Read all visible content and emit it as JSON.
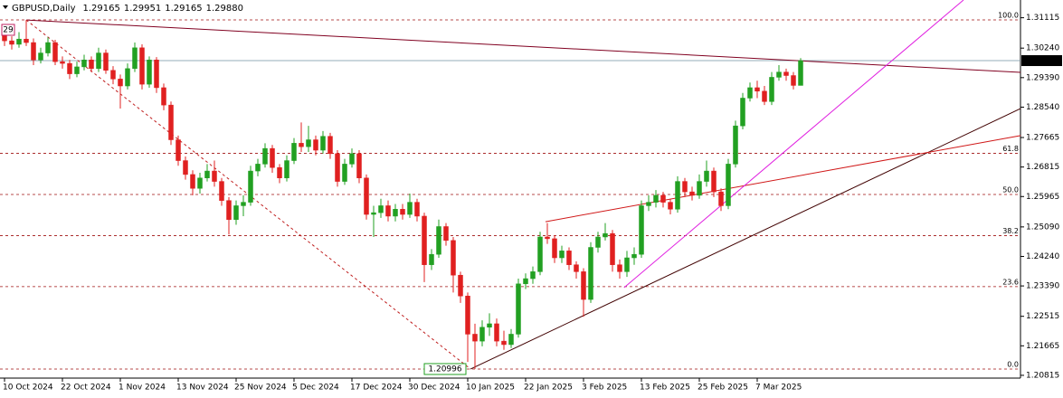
{
  "chart_data": {
    "type": "candlestick",
    "symbol": "GBPUSD,Daily",
    "corner_label": "29",
    "last_price_label": "1.29880",
    "categories": [
      "10 Oct 2024",
      null,
      null,
      null,
      null,
      null,
      null,
      null,
      "22 Oct 2024",
      null,
      null,
      null,
      null,
      null,
      null,
      null,
      "1 Nov 2024",
      null,
      null,
      null,
      null,
      null,
      null,
      null,
      "13 Nov 2024",
      null,
      null,
      null,
      null,
      null,
      null,
      null,
      "25 Nov 2024",
      null,
      null,
      null,
      null,
      null,
      null,
      null,
      "5 Dec 2024",
      null,
      null,
      null,
      null,
      null,
      null,
      null,
      "17 Dec 2024",
      null,
      null,
      null,
      null,
      null,
      null,
      null,
      "30 Dec 2024",
      null,
      null,
      null,
      null,
      null,
      null,
      null,
      "10 Jan 2025",
      null,
      null,
      null,
      null,
      null,
      null,
      null,
      "22 Jan 2025",
      null,
      null,
      null,
      null,
      null,
      null,
      null,
      "3 Feb 2025",
      null,
      null,
      null,
      null,
      null,
      null,
      null,
      "13 Feb 2025",
      null,
      null,
      null,
      null,
      null,
      null,
      null,
      "25 Feb 2025",
      null,
      null,
      null,
      null,
      null,
      null,
      null,
      "7 Mar 2025",
      null,
      null,
      null,
      null,
      null,
      null
    ],
    "open": [
      1.306,
      1.3045,
      1.3035,
      1.305,
      1.304,
      1.299,
      1.301,
      1.304,
      1.2985,
      1.298,
      1.295,
      1.297,
      1.299,
      1.2965,
      1.301,
      1.296,
      1.2935,
      1.2915,
      1.2965,
      1.3025,
      1.292,
      1.299,
      1.291,
      1.286,
      1.276,
      1.27,
      1.266,
      1.262,
      1.265,
      1.267,
      1.264,
      1.2585,
      1.253,
      1.257,
      1.258,
      1.267,
      1.269,
      1.2735,
      1.268,
      1.265,
      1.27,
      1.275,
      1.274,
      1.276,
      1.273,
      1.277,
      1.272,
      1.264,
      1.269,
      1.272,
      1.265,
      1.2545,
      1.255,
      1.257,
      1.254,
      1.256,
      1.2545,
      1.258,
      1.254,
      1.24,
      1.243,
      1.251,
      1.247,
      1.237,
      1.231,
      1.22,
      1.218,
      1.222,
      1.223,
      1.218,
      1.217,
      1.22,
      1.2345,
      1.236,
      1.238,
      1.248,
      1.2475,
      1.242,
      1.244,
      1.24,
      1.238,
      1.23,
      1.245,
      1.248,
      1.249,
      1.24,
      1.238,
      1.242,
      1.243,
      1.257,
      1.258,
      1.26,
      1.258,
      1.256,
      1.264,
      1.261,
      1.26,
      1.264,
      1.267,
      1.261,
      1.257,
      1.269,
      1.28,
      1.288,
      1.291,
      1.29,
      1.287,
      1.294,
      1.2955,
      1.2945,
      1.29165
    ],
    "high": [
      1.3072,
      1.3058,
      1.307,
      1.3105,
      1.3052,
      1.3025,
      1.3055,
      1.3048,
      1.3,
      1.299,
      1.2985,
      1.3005,
      1.3,
      1.3025,
      1.302,
      1.2972,
      1.2948,
      1.298,
      1.304,
      1.3035,
      1.3,
      1.2998,
      1.2922,
      1.287,
      1.2772,
      1.2712,
      1.2672,
      1.2665,
      1.269,
      1.27,
      1.265,
      1.2595,
      1.2585,
      1.26,
      1.2685,
      1.2705,
      1.275,
      1.2745,
      1.269,
      1.2715,
      1.2765,
      1.281,
      1.28,
      1.2772,
      1.2785,
      1.278,
      1.273,
      1.2705,
      1.2735,
      1.273,
      1.266,
      1.257,
      1.259,
      1.2585,
      1.2575,
      1.2575,
      1.2605,
      1.259,
      1.255,
      1.2445,
      1.253,
      1.252,
      1.248,
      1.238,
      1.232,
      1.223,
      1.224,
      1.226,
      1.2245,
      1.221,
      1.2215,
      1.236,
      1.2375,
      1.2395,
      1.2495,
      1.252,
      1.2485,
      1.2455,
      1.245,
      1.241,
      1.239,
      1.2465,
      1.2495,
      1.252,
      1.25,
      1.2415,
      1.244,
      1.245,
      1.2585,
      1.26,
      1.2615,
      1.261,
      1.259,
      1.2655,
      1.265,
      1.2625,
      1.266,
      1.27,
      1.268,
      1.262,
      1.2705,
      1.2815,
      1.2895,
      1.2925,
      1.293,
      1.2915,
      1.2955,
      1.2975,
      1.2965,
      1.2955,
      1.29951
    ],
    "low": [
      1.303,
      1.302,
      1.3025,
      1.303,
      1.2975,
      1.298,
      1.3,
      1.2975,
      1.2965,
      1.2935,
      1.294,
      1.296,
      1.2955,
      1.2955,
      1.295,
      1.292,
      1.285,
      1.2905,
      1.2955,
      1.2905,
      1.291,
      1.2895,
      1.2845,
      1.2745,
      1.2685,
      1.2645,
      1.26,
      1.2605,
      1.264,
      1.2625,
      1.257,
      1.2487,
      1.2515,
      1.254,
      1.257,
      1.2655,
      1.268,
      1.2665,
      1.2635,
      1.264,
      1.269,
      1.2725,
      1.2725,
      1.2715,
      1.272,
      1.2705,
      1.2625,
      1.263,
      1.268,
      1.2635,
      1.253,
      1.248,
      1.2535,
      1.2525,
      1.2525,
      1.253,
      1.2535,
      1.2525,
      1.235,
      1.2385,
      1.242,
      1.2455,
      1.232,
      1.229,
      1.212,
      1.20996,
      1.2165,
      1.2195,
      1.2165,
      1.2155,
      1.216,
      1.219,
      1.233,
      1.2345,
      1.237,
      1.246,
      1.2405,
      1.2405,
      1.2385,
      1.236,
      1.225,
      1.229,
      1.2435,
      1.247,
      1.238,
      1.236,
      1.2365,
      1.24,
      1.242,
      1.2555,
      1.2565,
      1.2565,
      1.2545,
      1.255,
      1.2595,
      1.2585,
      1.259,
      1.2625,
      1.2595,
      1.2555,
      1.256,
      1.268,
      1.279,
      1.287,
      1.288,
      1.286,
      1.286,
      1.293,
      1.293,
      1.2905,
      1.29165
    ],
    "close": [
      1.3045,
      1.3035,
      1.305,
      1.304,
      1.299,
      1.301,
      1.304,
      1.2985,
      1.298,
      1.295,
      1.297,
      1.299,
      1.2965,
      1.301,
      1.296,
      1.2935,
      1.2915,
      1.2965,
      1.3025,
      1.292,
      1.299,
      1.291,
      1.286,
      1.276,
      1.27,
      1.266,
      1.262,
      1.265,
      1.267,
      1.264,
      1.2585,
      1.253,
      1.257,
      1.258,
      1.267,
      1.269,
      1.2735,
      1.268,
      1.265,
      1.27,
      1.275,
      1.274,
      1.276,
      1.273,
      1.277,
      1.272,
      1.264,
      1.269,
      1.272,
      1.265,
      1.2545,
      1.255,
      1.257,
      1.254,
      1.256,
      1.2545,
      1.258,
      1.254,
      1.24,
      1.243,
      1.251,
      1.247,
      1.237,
      1.231,
      1.22,
      1.218,
      1.222,
      1.223,
      1.218,
      1.217,
      1.22,
      1.2345,
      1.236,
      1.238,
      1.248,
      1.2475,
      1.242,
      1.244,
      1.24,
      1.238,
      1.23,
      1.245,
      1.248,
      1.249,
      1.24,
      1.238,
      1.242,
      1.243,
      1.257,
      1.258,
      1.26,
      1.258,
      1.256,
      1.264,
      1.261,
      1.26,
      1.264,
      1.267,
      1.261,
      1.257,
      1.269,
      1.28,
      1.288,
      1.291,
      1.29,
      1.287,
      1.294,
      1.2955,
      1.2945,
      1.29165,
      1.2988
    ],
    "up_color": "#22a022",
    "down_color": "#e02020",
    "xlim": [
      -0.625,
      140.375
    ],
    "ylim": [
      1.20735,
      1.31626
    ],
    "yticks": [
      1.31115,
      {
        "value": 1.3024,
        "label": "1.30240"
      },
      {
        "value": 1.2939,
        "label": "1.29390"
      },
      {
        "value": 1.2854,
        "label": "1.28540"
      },
      1.27665,
      1.26815,
      1.25965,
      {
        "value": 1.2509,
        "label": "1.25090"
      },
      {
        "value": 1.2424,
        "label": "1.24240"
      },
      {
        "value": 1.2339,
        "label": "1.23390"
      },
      1.22515,
      1.21665,
      1.20815
    ],
    "fibonacci": {
      "levels": [
        "0.0",
        "23.6",
        "38.2",
        "50.0",
        "61.8",
        "100.0"
      ],
      "prices": [
        1.20996,
        1.23369,
        1.24837,
        1.26024,
        1.27211,
        1.31052
      ],
      "color": "#a01010"
    },
    "trendlines": [
      {
        "color": "#800020",
        "dashed": false,
        "x": [
          3,
          140.4
        ],
        "y": [
          1.3105,
          1.2954
        ]
      },
      {
        "color": "#c02020",
        "dashed": true,
        "x": [
          3,
          64.4
        ],
        "y": [
          1.3105,
          1.20996
        ]
      },
      {
        "color": "#400000",
        "dashed": false,
        "x": [
          64.4,
          140.4
        ],
        "y": [
          1.20996,
          1.285
        ]
      },
      {
        "color": "#d01818",
        "dashed": false,
        "x": [
          74.75,
          140.4
        ],
        "y": [
          1.2524,
          1.2772
        ]
      },
      {
        "color": "#e020e0",
        "dashed": false,
        "x": [
          85.6,
          132.5
        ],
        "y": [
          1.2334,
          1.31626
        ]
      }
    ]
  }
}
